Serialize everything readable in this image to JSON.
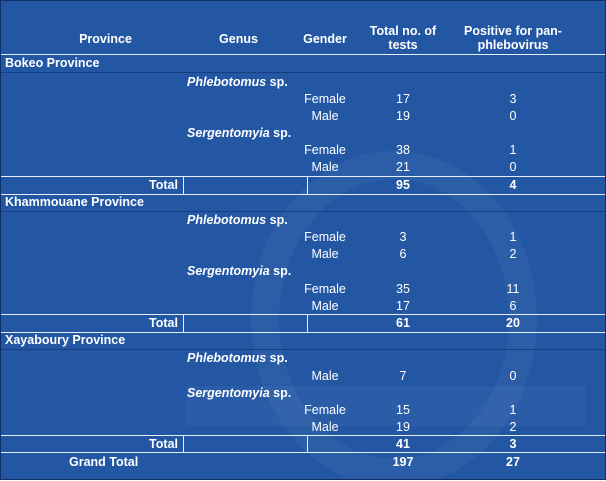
{
  "headers": {
    "province": "Province",
    "genus": "Genus",
    "gender": "Gender",
    "tests_line1": "Total no. of",
    "tests_line2": "tests",
    "positive_line1": "Positive for pan-",
    "positive_line2": "phlebovirus"
  },
  "provinces": [
    {
      "name": "Bokeo Province",
      "genera": [
        {
          "genus": "Phlebotomus",
          "suffix": " sp.",
          "rows": [
            {
              "gender": "Female",
              "tests": "17",
              "positive": "3"
            },
            {
              "gender": "Male",
              "tests": "19",
              "positive": "0"
            }
          ]
        },
        {
          "genus": "Sergentomyia",
          "suffix": " sp.",
          "rows": [
            {
              "gender": "Female",
              "tests": "38",
              "positive": "1"
            },
            {
              "gender": "Male",
              "tests": "21",
              "positive": "0"
            }
          ]
        }
      ],
      "total_label": "Total",
      "total_tests": "95",
      "total_positive": "4"
    },
    {
      "name": "Khammouane Province",
      "genera": [
        {
          "genus": "Phlebotomus",
          "suffix": " sp.",
          "rows": [
            {
              "gender": "Female",
              "tests": "3",
              "positive": "1"
            },
            {
              "gender": "Male",
              "tests": "6",
              "positive": "2"
            }
          ]
        },
        {
          "genus": "Sergentomyia",
          "suffix": " sp.",
          "rows": [
            {
              "gender": "Female",
              "tests": "35",
              "positive": "11"
            },
            {
              "gender": "Male",
              "tests": "17",
              "positive": "6"
            }
          ]
        }
      ],
      "total_label": "Total",
      "total_tests": "61",
      "total_positive": "20"
    },
    {
      "name": "Xayaboury Province",
      "genera": [
        {
          "genus": "Phlebotomus",
          "suffix": " sp.",
          "rows": [
            {
              "gender": "Male",
              "tests": "7",
              "positive": "0"
            }
          ]
        },
        {
          "genus": "Sergentomyia",
          "suffix": " sp.",
          "rows": [
            {
              "gender": "Female",
              "tests": "15",
              "positive": "1"
            },
            {
              "gender": "Male",
              "tests": "19",
              "positive": "2"
            }
          ]
        }
      ],
      "total_label": "Total",
      "total_tests": "41",
      "total_positive": "3"
    }
  ],
  "grand_total": {
    "label": "Grand Total",
    "tests": "197",
    "positive": "27"
  },
  "colors": {
    "background": "#2357a4",
    "text": "#ffffff",
    "rule": "#e8eef8"
  }
}
